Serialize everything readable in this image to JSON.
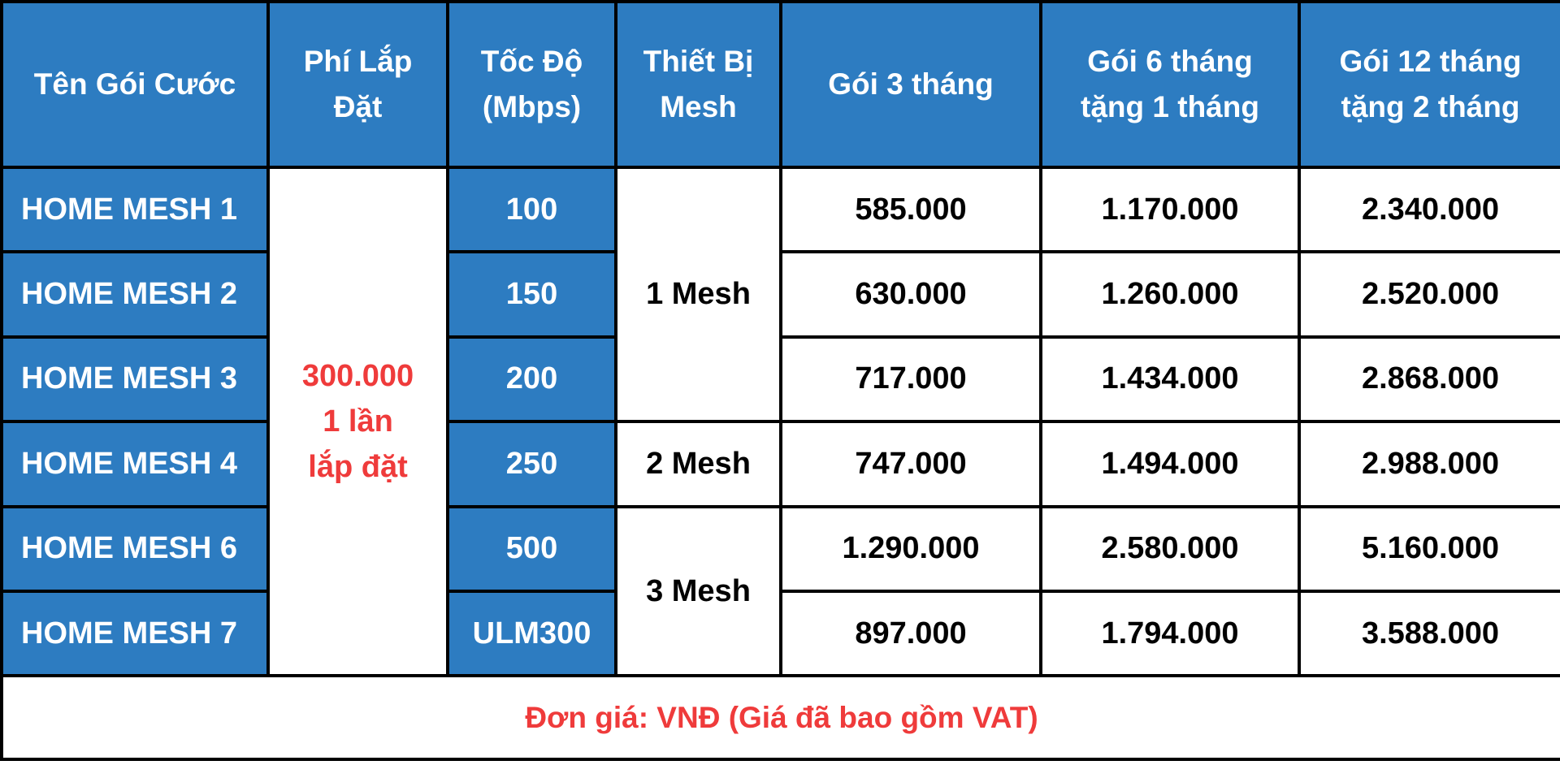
{
  "headers": {
    "name": "Tên Gói Cước",
    "fee": [
      "Phí Lắp",
      "Đặt"
    ],
    "speed": [
      "Tốc Độ",
      "(Mbps)"
    ],
    "mesh": [
      "Thiết Bị",
      "Mesh"
    ],
    "m3": "Gói 3 tháng",
    "m6": [
      "Gói 6 tháng",
      "tặng 1 tháng"
    ],
    "m12": [
      "Gói 12 tháng",
      "tặng 2 tháng"
    ]
  },
  "install_fee": [
    "300.000",
    "1 lần",
    "lắp đặt"
  ],
  "mesh_groups": [
    "1 Mesh",
    "2 Mesh",
    "3 Mesh"
  ],
  "rows": [
    {
      "name": "HOME MESH 1",
      "speed": "100",
      "m3": "585.000",
      "m6": "1.170.000",
      "m12": "2.340.000"
    },
    {
      "name": "HOME MESH 2",
      "speed": "150",
      "m3": "630.000",
      "m6": "1.260.000",
      "m12": "2.520.000"
    },
    {
      "name": "HOME MESH 3",
      "speed": "200",
      "m3": "717.000",
      "m6": "1.434.000",
      "m12": "2.868.000"
    },
    {
      "name": "HOME MESH 4",
      "speed": "250",
      "m3": "747.000",
      "m6": "1.494.000",
      "m12": "2.988.000"
    },
    {
      "name": "HOME MESH 6",
      "speed": "500",
      "m3": "1.290.000",
      "m6": "2.580.000",
      "m12": "5.160.000"
    },
    {
      "name": "HOME MESH 7",
      "speed": "ULM300",
      "m3": "897.000",
      "m6": "1.794.000",
      "m12": "3.588.000"
    }
  ],
  "footer_note": "Đơn giá: VNĐ (Giá đã bao gồm VAT)",
  "colors": {
    "header_blue": "#2d7cc1",
    "accent_red": "#ef3b3b",
    "border": "#000000"
  }
}
